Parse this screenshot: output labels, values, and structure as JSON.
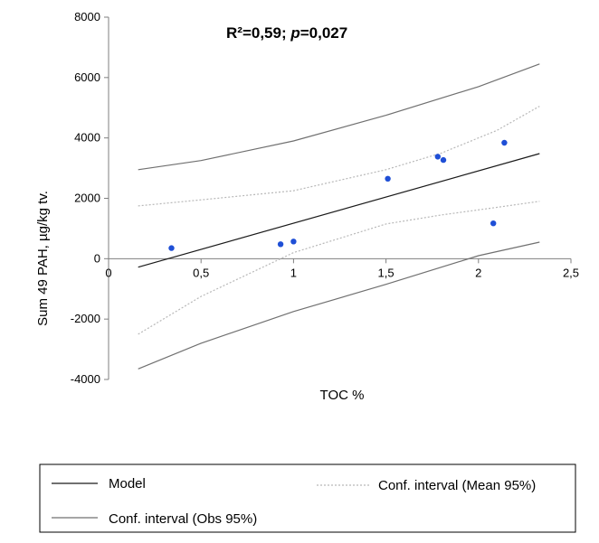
{
  "chart_data": {
    "type": "scatter",
    "title": "",
    "annotation": {
      "r2_label": "R²=0,59; ",
      "p_symbol": "p",
      "p_value": "=0,027"
    },
    "xlabel": "TOC %",
    "ylabel": "Sum 49 PAH, µg/kg tv.",
    "xlim": [
      0,
      2.5
    ],
    "ylim": [
      -4000,
      8000
    ],
    "x_ticks": [
      {
        "v": 0,
        "label": "0"
      },
      {
        "v": 0.5,
        "label": "0,5"
      },
      {
        "v": 1,
        "label": "1"
      },
      {
        "v": 1.5,
        "label": "1,5"
      },
      {
        "v": 2,
        "label": "2"
      },
      {
        "v": 2.5,
        "label": "2,5"
      }
    ],
    "y_ticks": [
      {
        "v": 8000,
        "label": "8000"
      },
      {
        "v": 6000,
        "label": "6000"
      },
      {
        "v": 4000,
        "label": "4000"
      },
      {
        "v": 2000,
        "label": "2000"
      },
      {
        "v": 0,
        "label": "0"
      },
      {
        "v": -2000,
        "label": "-2000"
      },
      {
        "v": -4000,
        "label": "-4000"
      }
    ],
    "points": [
      {
        "x": 0.34,
        "y": 350
      },
      {
        "x": 0.93,
        "y": 480
      },
      {
        "x": 1.0,
        "y": 570
      },
      {
        "x": 1.51,
        "y": 2650
      },
      {
        "x": 1.78,
        "y": 3380
      },
      {
        "x": 1.81,
        "y": 3270
      },
      {
        "x": 2.08,
        "y": 1170
      },
      {
        "x": 2.14,
        "y": 3840
      }
    ],
    "series": [
      {
        "name": "Model",
        "kind": "line",
        "x": [
          0.16,
          2.33
        ],
        "y": [
          -280,
          3480
        ]
      },
      {
        "name": "Conf. interval (Mean 95%)",
        "kind": "dotted",
        "upper_x": [
          0.16,
          0.5,
          1.0,
          1.5,
          1.8,
          2.1,
          2.33
        ],
        "upper_y": [
          1750,
          1950,
          2250,
          2950,
          3500,
          4250,
          5050
        ],
        "lower_x": [
          0.16,
          0.5,
          1.0,
          1.5,
          1.8,
          2.1,
          2.33
        ],
        "lower_y": [
          -2500,
          -1250,
          200,
          1150,
          1450,
          1700,
          1900
        ]
      },
      {
        "name": "Conf. interval (Obs 95%)",
        "kind": "line",
        "upper_x": [
          0.16,
          0.5,
          1.0,
          1.5,
          2.0,
          2.33
        ],
        "upper_y": [
          2950,
          3250,
          3900,
          4750,
          5700,
          6450
        ],
        "lower_x": [
          0.16,
          0.5,
          1.0,
          1.5,
          2.0,
          2.33
        ],
        "lower_y": [
          -3650,
          -2800,
          -1750,
          -850,
          100,
          550
        ]
      }
    ],
    "legend": {
      "position": "bottom",
      "items": [
        "Model",
        "Conf. interval (Mean 95%)",
        "Conf. interval (Obs 95%)"
      ]
    },
    "colors": {
      "points": "#1f4fd6",
      "model": "#1a1a1a",
      "mean_ci": "#b8b8b8",
      "obs_ci": "#707070",
      "axis": "#7f7f7f"
    },
    "grid": false
  }
}
